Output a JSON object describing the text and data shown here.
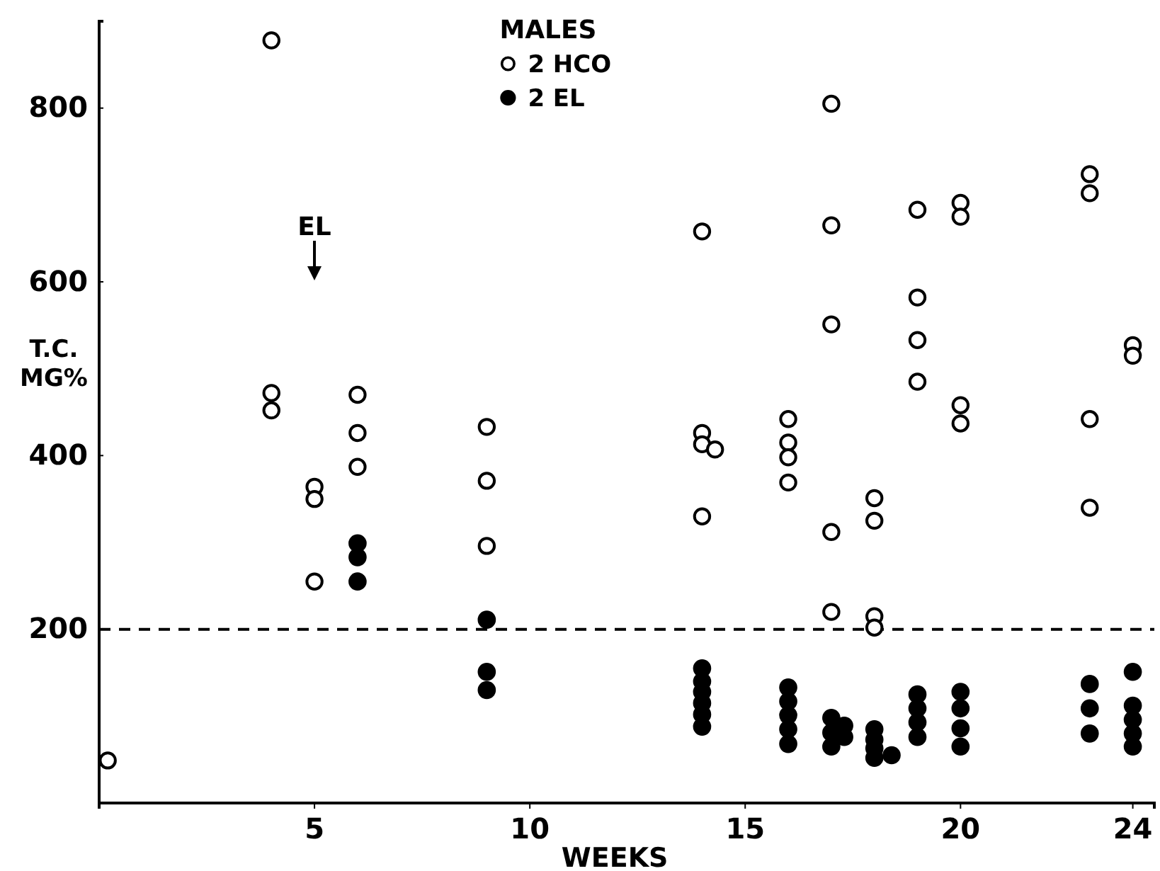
{
  "chart_data": {
    "type": "scatter",
    "xlabel": "WEEKS",
    "ylabel": "T.C. MG%",
    "legend_title": "MALES",
    "legend": "top",
    "marker": "circle",
    "grid": false,
    "xlim": [
      0,
      24.5
    ],
    "xticks": [
      5,
      10,
      15,
      20,
      24
    ],
    "ylim": [
      0,
      900
    ],
    "yticks": [
      200,
      400,
      600,
      800
    ],
    "ref_lines": [
      {
        "axis": "y",
        "value": 200,
        "line_style": "dashed",
        "color": "#000000"
      }
    ],
    "annotations": [
      "EL"
    ],
    "series": [
      {
        "name": "2 HCO",
        "color": "#ffffff",
        "x": [
          0.2,
          4,
          4,
          4,
          5,
          5,
          5,
          6,
          6,
          6,
          9,
          9,
          9,
          14,
          14,
          14,
          14.3,
          14,
          16,
          16,
          16,
          16,
          17,
          17,
          17,
          17,
          17,
          18,
          18,
          18,
          18,
          19,
          19,
          19,
          19,
          20,
          20,
          20,
          20,
          23,
          23,
          23,
          23,
          24,
          24
        ],
        "values": [
          49,
          878,
          472,
          452,
          364,
          350,
          255,
          470,
          426,
          387,
          433,
          371,
          296,
          658,
          426,
          413,
          407,
          330,
          442,
          415,
          398,
          369,
          805,
          665,
          551,
          312,
          220,
          351,
          325,
          215,
          202,
          683,
          582,
          533,
          485,
          691,
          675,
          458,
          437,
          724,
          702,
          442,
          340,
          527,
          515
        ]
      },
      {
        "name": "2 EL",
        "color": "#000000",
        "x": [
          6,
          6,
          6,
          9,
          9,
          9,
          14,
          14,
          14,
          14,
          14,
          14,
          16,
          16,
          16,
          16,
          16,
          17,
          17.3,
          17,
          17.3,
          17,
          18,
          18,
          18,
          18,
          18.4,
          19,
          19,
          19,
          19,
          20,
          20,
          20,
          20,
          23,
          23,
          23,
          24,
          24,
          24,
          24,
          24
        ],
        "values": [
          299,
          283,
          255,
          211,
          151,
          130,
          155,
          140,
          128,
          115,
          102,
          88,
          133,
          117,
          101,
          85,
          68,
          98,
          89,
          81,
          76,
          65,
          85,
          73,
          63,
          52,
          55,
          125,
          109,
          93,
          76,
          128,
          109,
          86,
          65,
          137,
          109,
          80,
          151,
          112,
          96,
          80,
          65
        ]
      }
    ]
  }
}
